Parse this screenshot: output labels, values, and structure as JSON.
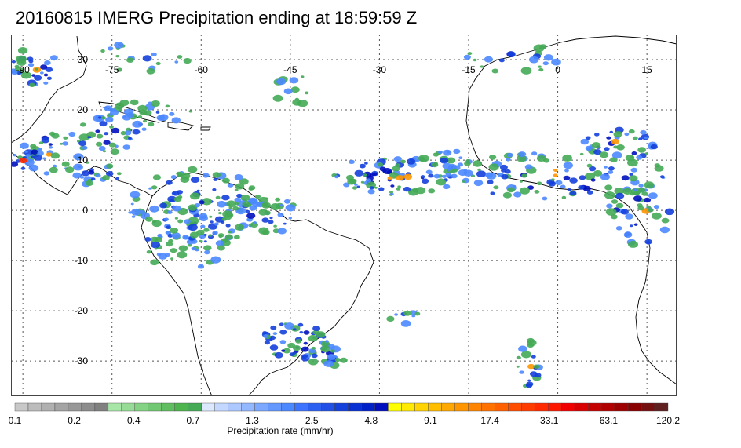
{
  "title": "20160815 IMERG Precipitation ending at 18:59:59 Z",
  "map": {
    "lon_labels": [
      "-90",
      "-75",
      "-60",
      "-45",
      "-30",
      "-15",
      "0",
      "15"
    ],
    "lat_labels": [
      "30",
      "20",
      "10",
      "0",
      "-10",
      "-20",
      "-30"
    ],
    "lon_range": [
      -92,
      20
    ],
    "lat_range": [
      -37,
      35
    ],
    "gridlines": true
  },
  "colorbar": {
    "label": "Precipitation rate (mm/hr)",
    "tick_labels": [
      "0.1",
      "0.2",
      "0.4",
      "0.7",
      "1.3",
      "2.5",
      "4.8",
      "9.1",
      "17.4",
      "33.1",
      "63.1",
      "120.2"
    ],
    "colors": [
      "#c8c8c8",
      "#bcbcbc",
      "#b0b0b0",
      "#a4a4a4",
      "#989898",
      "#8c8c8c",
      "#808080",
      "#a8e6a8",
      "#96dc96",
      "#84d284",
      "#72c872",
      "#60be60",
      "#4eb44e",
      "#44aa55",
      "#dce8ff",
      "#c4d8ff",
      "#acc8ff",
      "#94b8ff",
      "#7ca8ff",
      "#6498ff",
      "#4c88ff",
      "#3c74ff",
      "#2c60f0",
      "#2050e6",
      "#1440dc",
      "#0830d2",
      "#0020c8",
      "#0010be",
      "#ffff00",
      "#ffea00",
      "#ffd400",
      "#ffbe00",
      "#ffa800",
      "#ff9600",
      "#ff8400",
      "#ff7200",
      "#ff6000",
      "#ff4e00",
      "#ff3c00",
      "#ff2a00",
      "#ff1800",
      "#f00000",
      "#d80000",
      "#c40000",
      "#b00000",
      "#9c0000",
      "#880000",
      "#741010",
      "#602020"
    ]
  }
}
